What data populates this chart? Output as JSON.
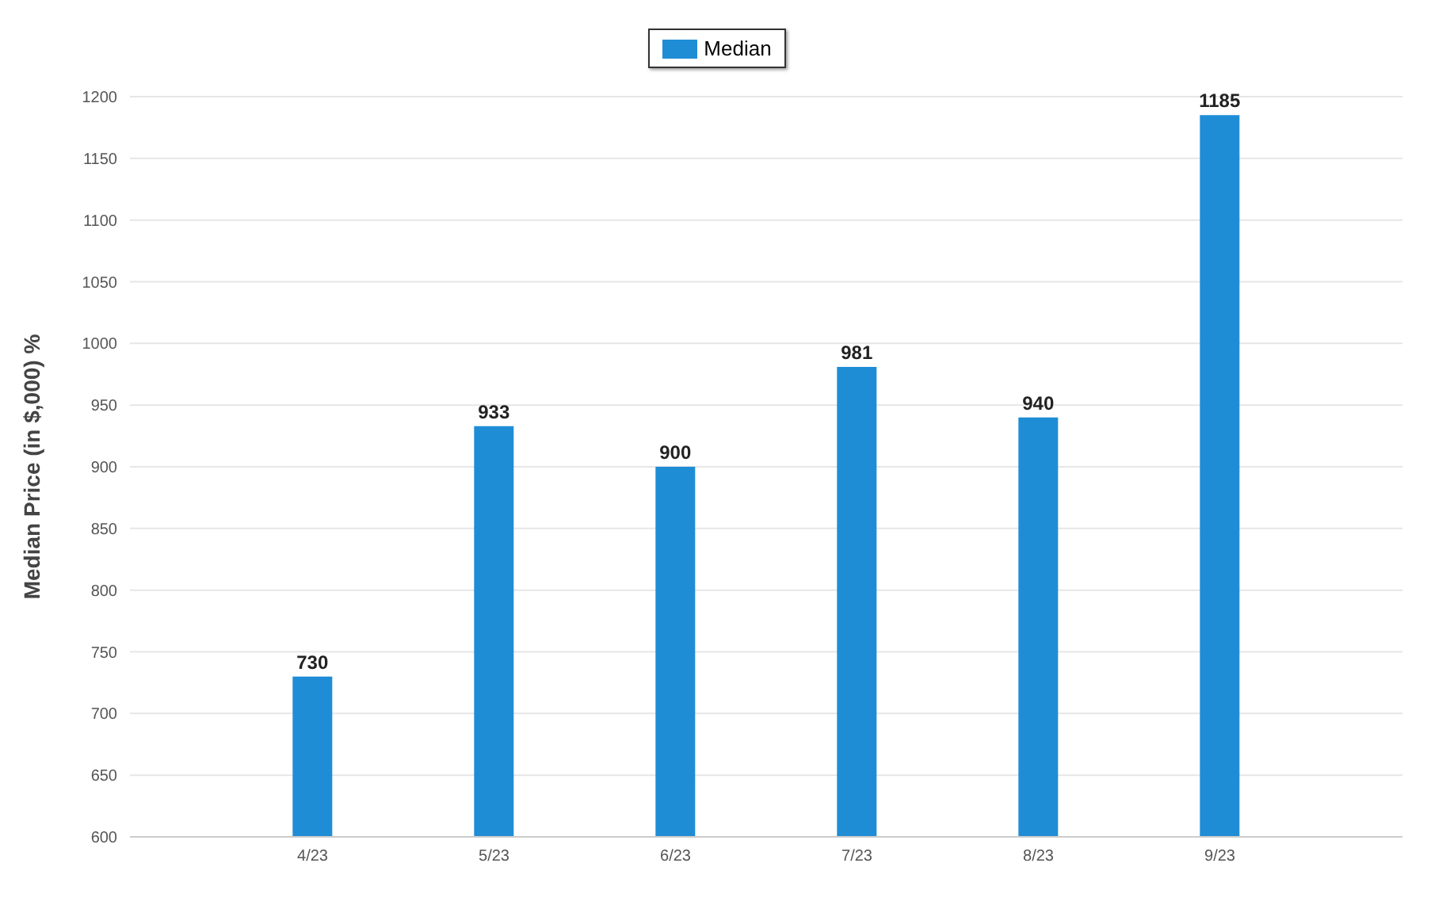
{
  "chart_data": {
    "type": "bar",
    "ylabel": "Median Price (in $,000) %",
    "categories": [
      "4/23",
      "5/23",
      "6/23",
      "7/23",
      "8/23",
      "9/23"
    ],
    "series": [
      {
        "name": "Median",
        "color": "#1f8dd6",
        "values": [
          730,
          933,
          900,
          981,
          940,
          1185
        ]
      }
    ],
    "ylim": [
      600,
      1200
    ],
    "yticks": [
      600,
      650,
      700,
      750,
      800,
      850,
      900,
      950,
      1000,
      1050,
      1100,
      1150,
      1200
    ],
    "grid": "y",
    "legend": "top",
    "data_labels": true
  }
}
